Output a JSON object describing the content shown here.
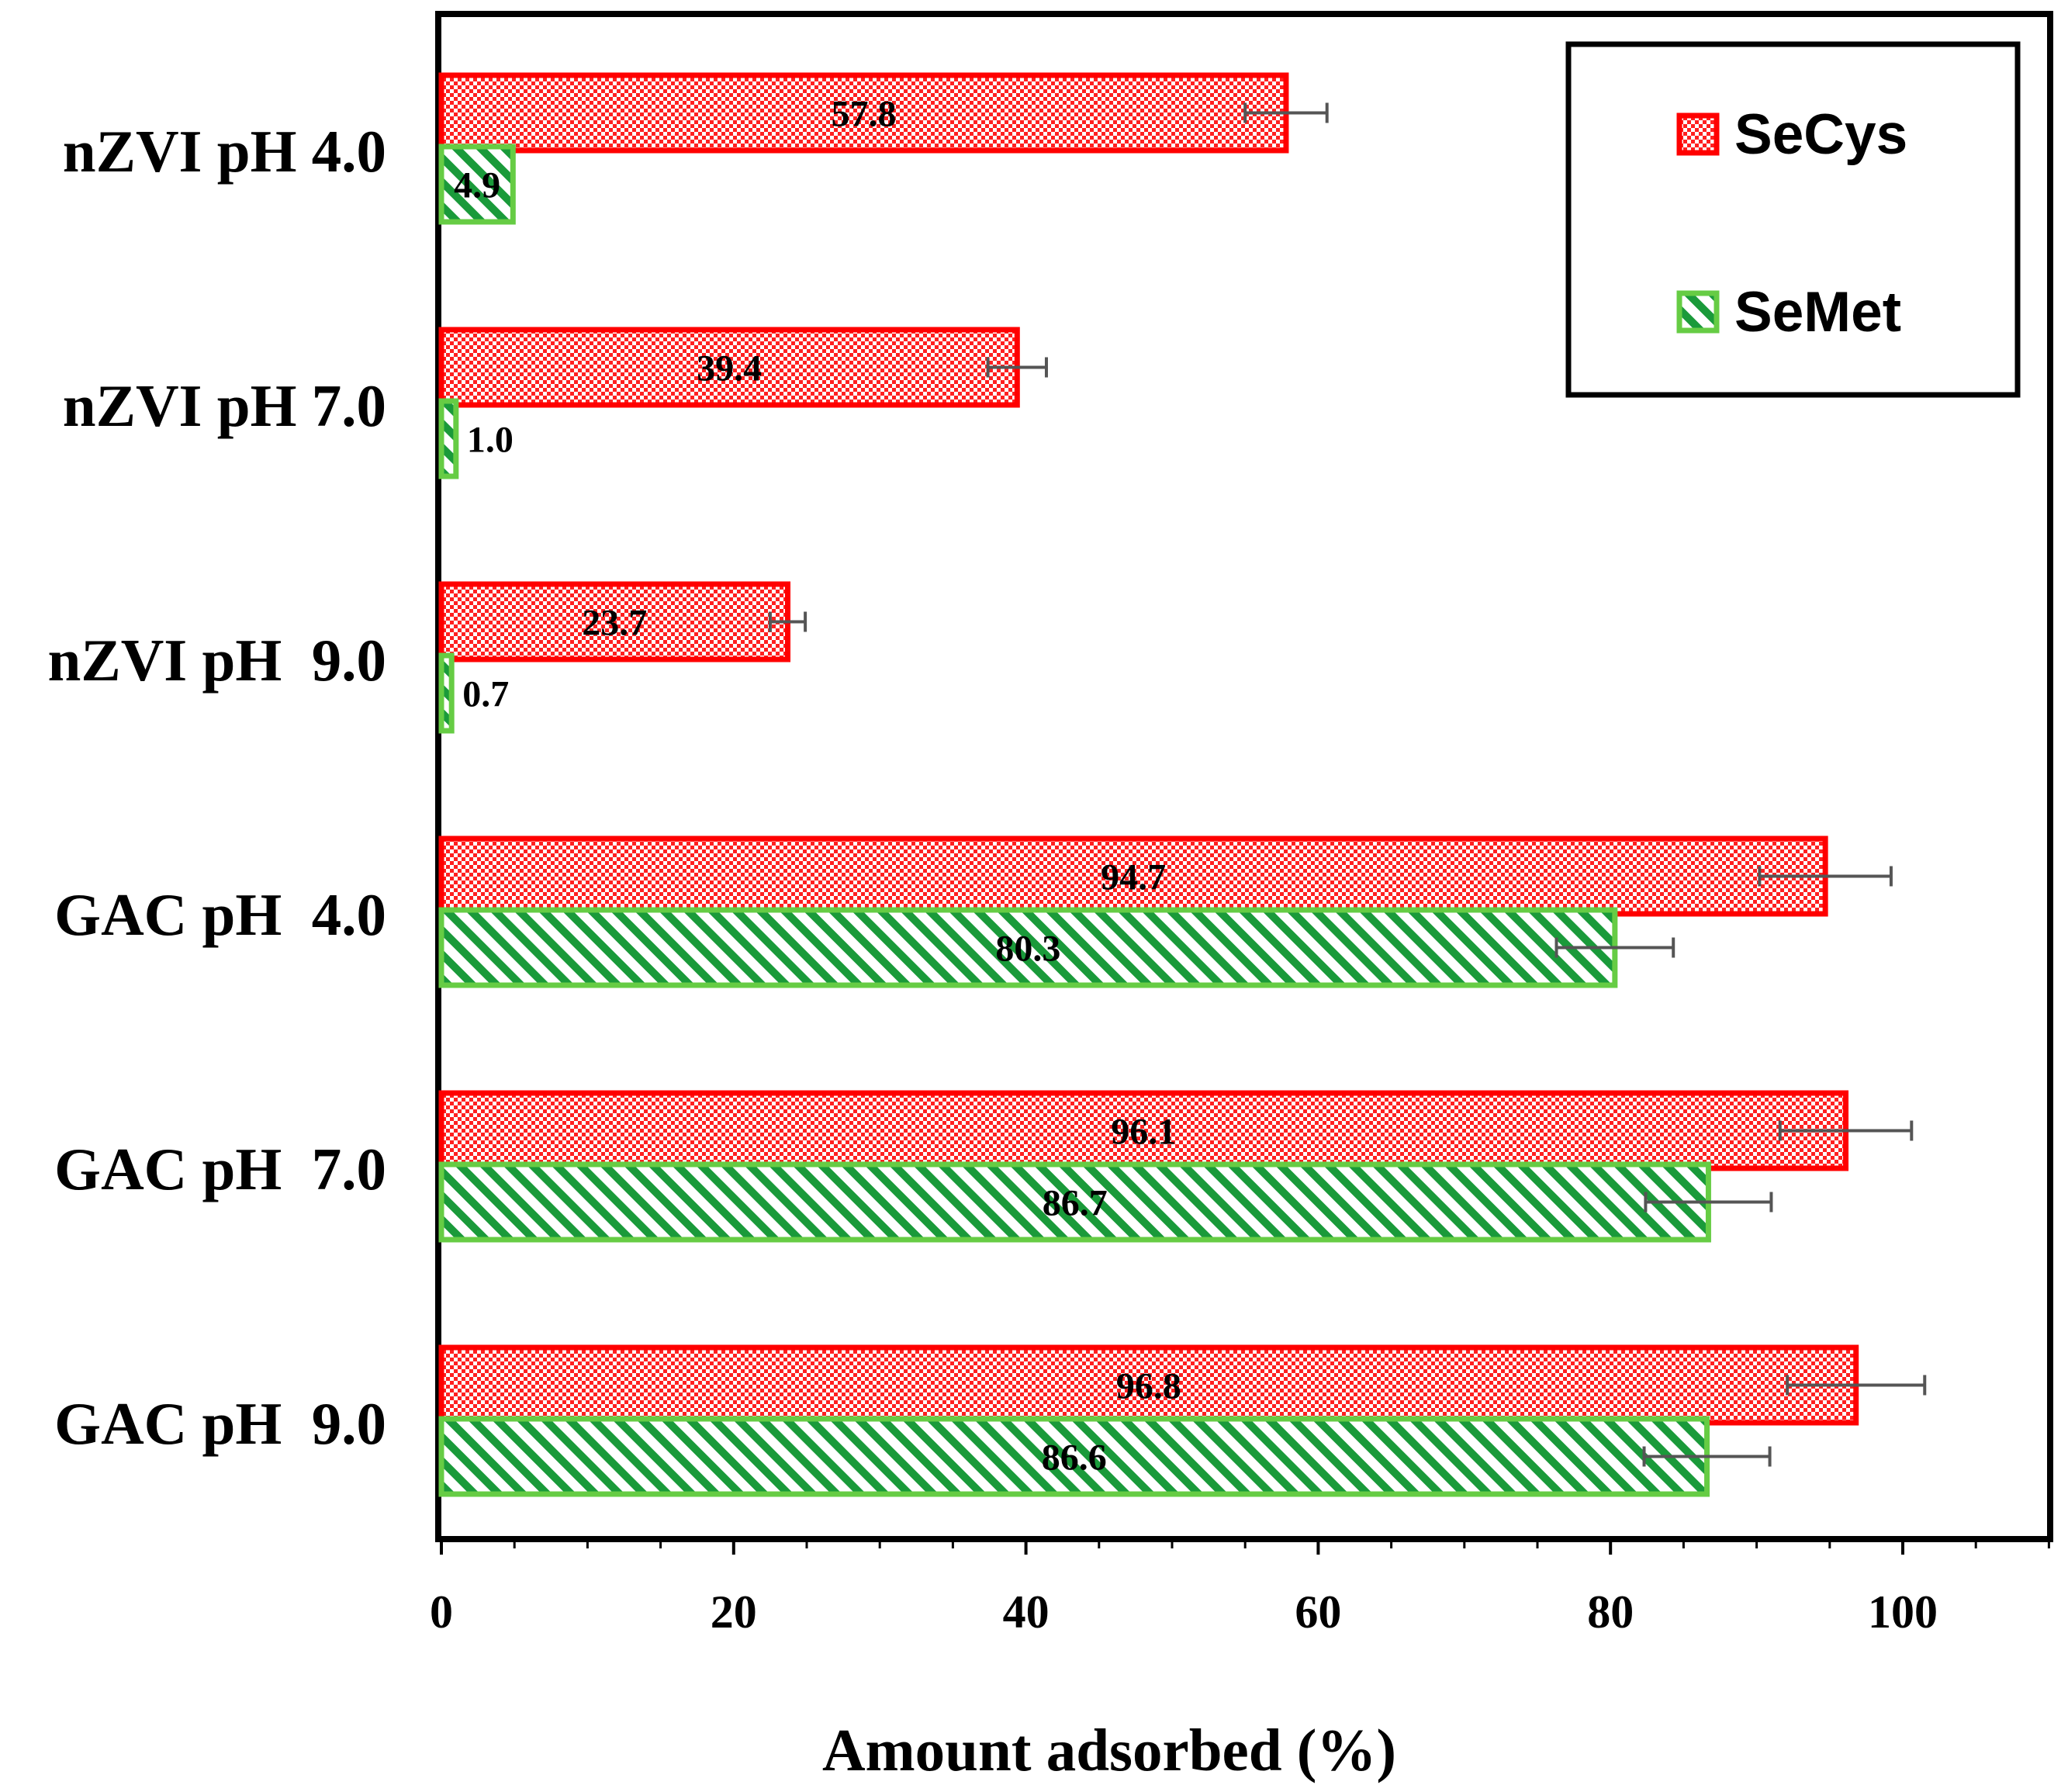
{
  "chart_data": {
    "type": "bar",
    "orientation": "horizontal",
    "categories": [
      "nZVI pH 4.0",
      "nZVI pH 7.0",
      "nZVI pH  9.0",
      "GAC pH  4.0",
      "GAC pH  7.0",
      "GAC pH  9.0"
    ],
    "series": [
      {
        "name": "SeCys",
        "color": "#ff0000",
        "pattern": "checker",
        "values": [
          57.8,
          39.4,
          23.7,
          94.7,
          96.1,
          96.8
        ],
        "value_labels": [
          "57.8",
          "39.4",
          "23.7",
          "94.7",
          "96.1",
          "96.8"
        ],
        "errors": [
          2.8,
          2.0,
          1.2,
          4.5,
          4.5,
          4.7
        ]
      },
      {
        "name": "SeMet",
        "color": "#66cc44",
        "pattern": "diagonal",
        "values": [
          4.9,
          1.0,
          0.7,
          80.3,
          86.7,
          86.6
        ],
        "value_labels": [
          "4.9",
          "1.0",
          "0.7",
          "80.3",
          "86.7",
          "86.6"
        ],
        "errors": [
          0,
          0,
          0,
          4.0,
          4.3,
          4.3
        ]
      }
    ],
    "xlabel": "Amount adsorbed (%)",
    "ylabel": "",
    "xlim": [
      0,
      110
    ],
    "xticks": [
      "0",
      "20",
      "40",
      "60",
      "80",
      "100"
    ],
    "xtick_values": [
      0,
      20,
      40,
      60,
      80,
      100
    ],
    "legend_position": "top-right",
    "grid": false
  }
}
